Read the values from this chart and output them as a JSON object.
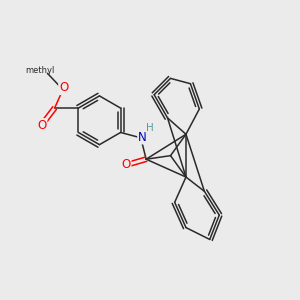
{
  "bg_color": "#ebebeb",
  "bond_color": "#2a2a2a",
  "bond_width": 1.1,
  "atom_colors": {
    "O": "#ff0000",
    "N": "#0000bb",
    "H_N": "#5a9a9a",
    "C": "#2a2a2a"
  },
  "font_size": 8.0
}
